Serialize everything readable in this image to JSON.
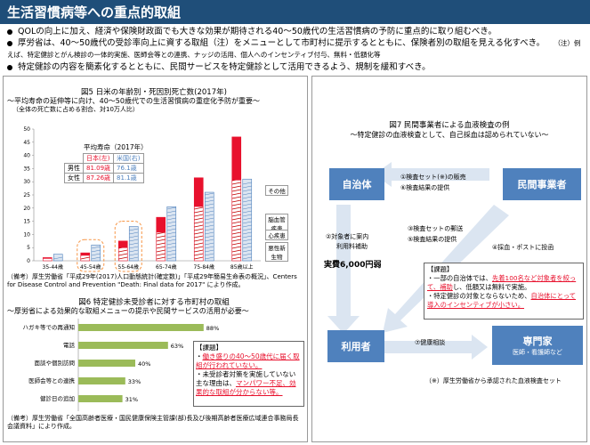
{
  "title": "生活習慣病等への重点的取組",
  "bullets": [
    "QOLの向上に加え、経済や保険財政面でも大きな効果が期待される40～50歳代の生活習慣病の予防に重点的に取り組むべき。",
    "厚労省は、40～50歳代の受診率向上に資する取組（注）をメニューとして市町村に提示するとともに、保険者別の取組を見える化すべき。",
    "特定健診の内容を簡素化するとともに、民間サービスを特定健診として活用できるよう、規制を緩和すべき。"
  ],
  "bullet2_note": "（注）例えば、特定健診とがん検診の一体的実施、医師会等との連携、ナッジの活用、個人へのインセンティブ付与、無料・低額化等",
  "fig5": {
    "title": "図5  日米の年齢別・死因別死亡数(2017年)",
    "subtitle": "～平均寿命の延伸等に向け、40～50歳代での生活習慣病の重症化予防が重要～",
    "unit": "（全体の死亡数に占める割合、対10万人比）",
    "lifespan_title": "平均寿命（2017年）",
    "col_jp": "日本(左)",
    "col_us": "米国(右)",
    "row_m": "男性",
    "row_f": "女性",
    "m_jp": "81.09歳",
    "m_us": "76.1歳",
    "f_jp": "87.26歳",
    "f_us": "81.1歳",
    "legend": [
      "その他",
      "脳血管疾患",
      "心疾患",
      "悪性新生物"
    ],
    "source": "（備考）厚生労働省「平成29年(2017)人口動態統計(確定数)」「平成29年簡易生命表の概況」、Centers for Disease Control and Prevention \"Death: Final data for 2017\" により作成。"
  },
  "chart_data": [
    {
      "type": "bar",
      "title": "図5  日米の年齢別・死因別死亡数(2017年)",
      "categories": [
        "35-44歳",
        "45-54歳",
        "55-64歳",
        "65-74歳",
        "75-84歳",
        "85歳以上"
      ],
      "ylabel": "",
      "ylim": [
        0,
        50
      ],
      "yticks": [
        0,
        5,
        10,
        15,
        20,
        25,
        30,
        35,
        40,
        45,
        50
      ],
      "series": [
        {
          "name": "日本",
          "totals": [
            1.2,
            3.0,
            7.5,
            16.5,
            31.5,
            47.0
          ]
        },
        {
          "name": "米国",
          "totals": [
            2.5,
            6.0,
            13.0,
            20.5,
            26.0,
            31.0
          ]
        }
      ],
      "stack_labels": [
        "その他",
        "脳血管疾患",
        "心疾患",
        "悪性新生物"
      ]
    },
    {
      "type": "bar",
      "title": "図6  特定健診未受診者に対する市町村の取組",
      "categories": [
        "ハガキ等での再通知",
        "電話",
        "面談や個別訪問",
        "医師会等との連携",
        "健診日の追加"
      ],
      "values": [
        88,
        63,
        40,
        33,
        31
      ],
      "unit": "%",
      "xlim": [
        0,
        100
      ]
    }
  ],
  "fig6": {
    "title": "図6  特定健診未受診者に対する市町村の取組",
    "subtitle": "～厚労省による効果的な取組メニューの提示や民間サービスの活用が必要～",
    "task_title": "【課題】",
    "task1a": "働き盛りの40～50歳代に届く取",
    "task1b": "組が行われていない。",
    "task2": "・未受診者対策を実施していない主な理由は、",
    "task2b": "マンパワー不足、効果的な取組が分からない等。",
    "source": "（備考）厚生労働省「全国高齢者医療・国民健康保険主管課(部)長及び後期高齢者医療広域連合事務局長会議資料」により作成。"
  },
  "fig7": {
    "title": "図7  民間事業者による血液検査の例",
    "subtitle": "～特定健診の血液検査として、自己採血は認められていない～",
    "municipality": "自治体",
    "business": "民間事業者",
    "user": "利用者",
    "expert": "専門家",
    "expert_sub": "医師・看護師など",
    "step1": "①検査セット(※)の販売",
    "step6": "⑥検査結果の提供",
    "step2a": "②対象者に案内",
    "step2b": "利用料補助",
    "cost": "実費6,000円弱",
    "step3": "③検査セットの郵送",
    "step5": "⑤検査結果の提供",
    "step4": "④採血・ポストに投函",
    "step7": "⑦健康相談",
    "issue_title": "【課題】",
    "issue1a": "・一部の自治体では、",
    "issue1b": "先着100名など対象者を絞って、補助",
    "issue1c": "し、低額又は無料で実施。",
    "issue2a": "・特定健診の対象とならないため、",
    "issue2b": "自治体にとって導入のインセンティブが小さい。",
    "footnote": "（※）厚生労働省から承認された血液検査セット"
  }
}
